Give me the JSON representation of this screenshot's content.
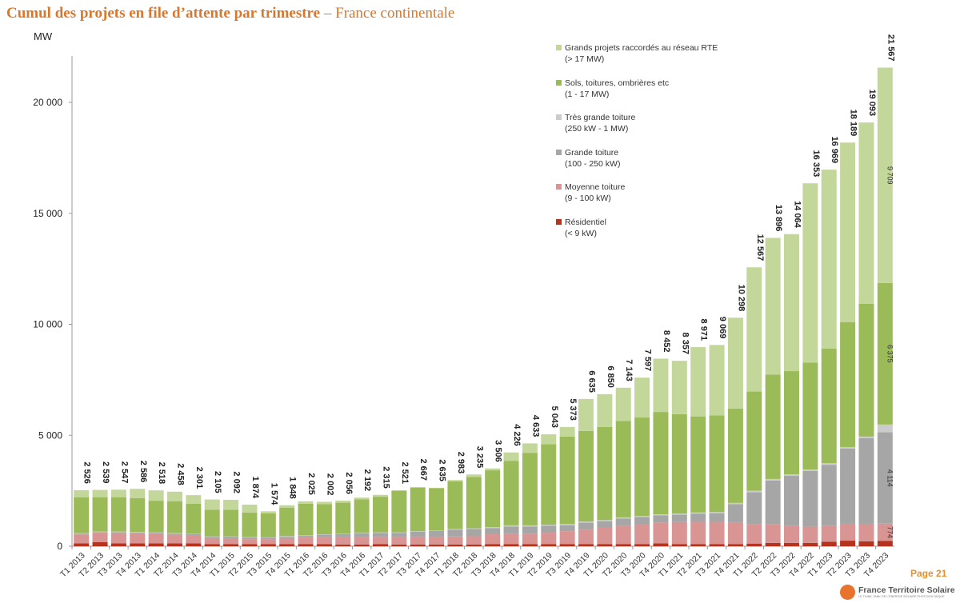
{
  "header": {
    "title_bold": "Cumul des projets en file d’attente par trimestre",
    "title_rest": " – France continentale"
  },
  "footer": {
    "page": "Page 21",
    "logo_name": "France Territoire Solaire",
    "logo_tagline": "LE THINK-TANK DE L'ÉNERGIE SOLAIRE PHOTOVOLTAÏQUE"
  },
  "chart_data": {
    "type": "bar",
    "stacked": true,
    "title": "Cumul des projets en file d’attente par trimestre – France continentale",
    "ylabel": "MW",
    "xlabel": "",
    "ylim": [
      0,
      22000
    ],
    "yticks": [
      0,
      5000,
      10000,
      15000,
      20000
    ],
    "ytick_labels": [
      "0",
      "5 000",
      "10 000",
      "15 000",
      "20 000"
    ],
    "grid": false,
    "legend_position": "top-right",
    "categories": [
      "T1 2013",
      "T2 2013",
      "T3 2013",
      "T4 2013",
      "T1 2014",
      "T2 2014",
      "T3 2014",
      "T4 2014",
      "T1 2015",
      "T2 2015",
      "T3 2015",
      "T4 2015",
      "T1 2016",
      "T2 2016",
      "T3 2016",
      "T4 2016",
      "T1 2017",
      "T2 2017",
      "T3 2017",
      "T4 2017",
      "T1 2018",
      "T2 2018",
      "T3 2018",
      "T4 2018",
      "T1 2019",
      "T2 2019",
      "T3 2019",
      "T4 2019",
      "T1 2020",
      "T2 2020",
      "T3 2020",
      "T4 2020",
      "T1 2021",
      "T2 2021",
      "T3 2021",
      "T4 2021",
      "T1 2022",
      "T2 2022",
      "T3 2022",
      "T4 2022",
      "T1 2023",
      "T2 2023",
      "T3 2023",
      "T4 2023"
    ],
    "totals": [
      2526,
      2539,
      2547,
      2586,
      2518,
      2458,
      2301,
      2105,
      2092,
      1874,
      1574,
      1848,
      2025,
      2002,
      2056,
      2192,
      2315,
      2521,
      2667,
      2635,
      2983,
      3235,
      3506,
      4226,
      4633,
      5043,
      5373,
      6635,
      6850,
      7143,
      7597,
      8452,
      8357,
      8971,
      9069,
      10298,
      12567,
      13896,
      14064,
      16353,
      16969,
      18189,
      19093,
      21567
    ],
    "series": [
      {
        "name": "Résidentiel",
        "range": "(< 9 kW)",
        "color": "#b5321e",
        "values": [
          130,
          180,
          130,
          130,
          130,
          130,
          130,
          100,
          100,
          100,
          100,
          100,
          100,
          100,
          80,
          80,
          100,
          80,
          80,
          80,
          80,
          80,
          100,
          100,
          100,
          100,
          100,
          100,
          100,
          100,
          100,
          130,
          100,
          100,
          100,
          100,
          120,
          150,
          150,
          150,
          200,
          250,
          220,
          245
        ]
      },
      {
        "name": "Moyenne toiture",
        "range": "(9 - 100 kW)",
        "color": "#d99594",
        "values": [
          400,
          430,
          460,
          460,
          440,
          390,
          340,
          270,
          240,
          220,
          220,
          270,
          320,
          310,
          330,
          330,
          320,
          330,
          330,
          330,
          360,
          370,
          440,
          450,
          470,
          510,
          580,
          650,
          730,
          830,
          870,
          940,
          990,
          1000,
          1000,
          950,
          860,
          830,
          760,
          730,
          710,
          760,
          790,
          774
        ]
      },
      {
        "name": "Grande toiture",
        "range": "(100 - 250 kW)",
        "color": "#a6a6a6",
        "values": [
          40,
          30,
          50,
          30,
          40,
          50,
          70,
          60,
          90,
          70,
          60,
          70,
          50,
          110,
          130,
          170,
          180,
          190,
          250,
          290,
          310,
          330,
          280,
          340,
          320,
          310,
          270,
          310,
          300,
          320,
          350,
          320,
          330,
          370,
          390,
          850,
          1450,
          1980,
          2260,
          2510,
          2760,
          3390,
          3860,
          4114
        ]
      },
      {
        "name": "Très grande toiture",
        "range": "(250 kW - 1 MW)",
        "color": "#cbcbcb",
        "values": [
          20,
          20,
          20,
          20,
          20,
          20,
          20,
          20,
          20,
          20,
          20,
          20,
          20,
          20,
          20,
          20,
          20,
          20,
          20,
          20,
          30,
          30,
          40,
          50,
          50,
          50,
          50,
          50,
          50,
          50,
          50,
          50,
          50,
          50,
          50,
          50,
          70,
          70,
          70,
          70,
          70,
          70,
          70,
          350
        ]
      },
      {
        "name": "Sols, toitures, ombrières etc",
        "range": "(1 - 17 MW)",
        "color": "#9bbb59",
        "values": [
          1620,
          1550,
          1550,
          1530,
          1420,
          1440,
          1350,
          1190,
          1190,
          1110,
          1080,
          1280,
          1430,
          1360,
          1400,
          1510,
          1610,
          1880,
          1960,
          1900,
          2140,
          2310,
          2560,
          2910,
          3270,
          3630,
          3940,
          4080,
          4190,
          4350,
          4430,
          4610,
          4480,
          4330,
          4360,
          4250,
          4470,
          4710,
          4650,
          4820,
          5160,
          5620,
          5980,
          6375
        ]
      },
      {
        "name": "Grands projets raccordés au réseau RTE",
        "range": "(> 17 MW)",
        "color": "#c4d79b",
        "values": [
          316,
          329,
          337,
          416,
          468,
          428,
          391,
          465,
          452,
          354,
          94,
          108,
          105,
          102,
          96,
          82,
          85,
          21,
          27,
          15,
          63,
          115,
          86,
          376,
          423,
          443,
          433,
          1445,
          1480,
          1493,
          1797,
          2402,
          2407,
          3121,
          3169,
          4098,
          5597,
          6156,
          6174,
          8073,
          8069,
          8099,
          8173,
          9709
        ]
      }
    ],
    "annotations": [
      {
        "category": "T4 2023",
        "series": "Grands projets raccordés au réseau RTE",
        "label": "9 709"
      },
      {
        "category": "T4 2023",
        "series": "Sols, toitures, ombrières etc",
        "label": "6 375"
      },
      {
        "category": "T4 2023",
        "series": "Grande toiture",
        "label": "4 114"
      },
      {
        "category": "T4 2023",
        "series": "Moyenne toiture",
        "label": "774"
      }
    ]
  }
}
